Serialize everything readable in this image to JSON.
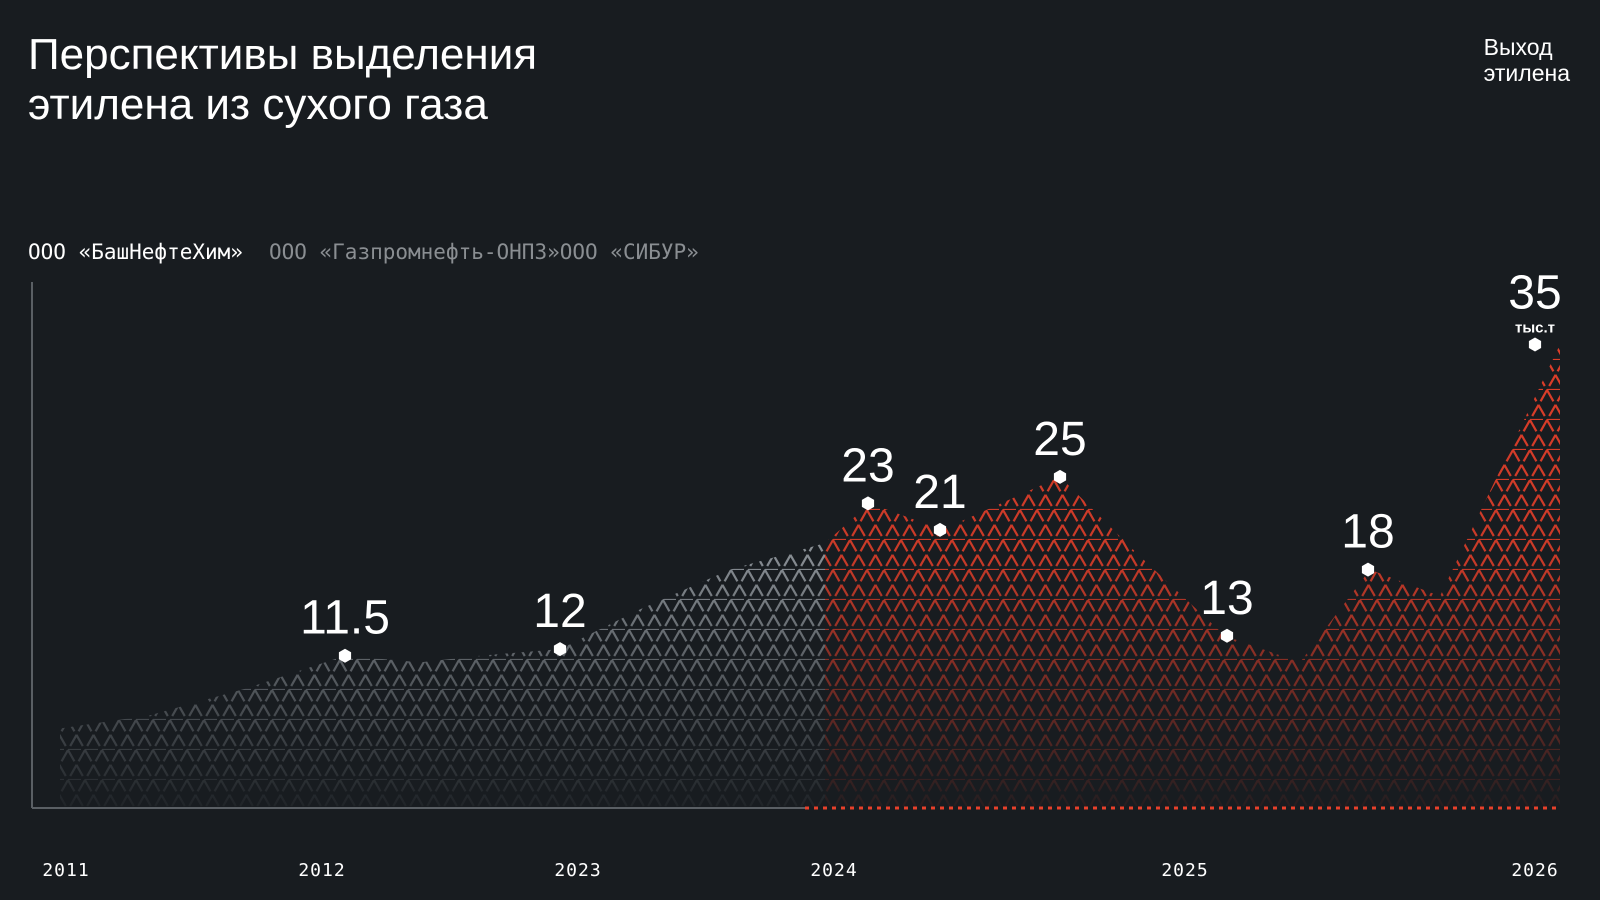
{
  "title": "Перспективы выделения\nэтилена из сухого газа",
  "unit_note": "Выход\nэтилена",
  "legend": [
    {
      "label": "ООО «БашНефтеХим»",
      "active": true
    },
    {
      "label": "ООО «Газпромнефть-ОНПЗ»",
      "active": false
    },
    {
      "label": "ООО «СИБУР»",
      "active": false
    }
  ],
  "colors": {
    "background": "#181c20",
    "history": "#9aa0a6",
    "forecast": "#e8402a",
    "axis": "#5a5f64"
  },
  "chart_data": {
    "type": "area",
    "x_ticks": [
      "2011",
      "2012",
      "2023",
      "2024",
      "2025",
      "2026"
    ],
    "unit": "тыс.т",
    "labeled_points": [
      {
        "x": "2012",
        "value": 11.5,
        "label": "11.5"
      },
      {
        "x": "2023",
        "value": 12,
        "label": "12"
      },
      {
        "x": "2024",
        "value": 23,
        "label": "23"
      },
      {
        "x": "2024",
        "value": 21,
        "label": "21"
      },
      {
        "x": "2024",
        "value": 25,
        "label": "25"
      },
      {
        "x": "2025",
        "value": 13,
        "label": "13"
      },
      {
        "x": "2025",
        "value": 18,
        "label": "18"
      },
      {
        "x": "2026",
        "value": 35,
        "label": "35"
      }
    ],
    "series": [
      {
        "segment": "history",
        "values": [
          6,
          7,
          9,
          11.5,
          11,
          11.5,
          12,
          15,
          18,
          20
        ]
      },
      {
        "segment": "forecast",
        "values": [
          20,
          23,
          21,
          25,
          19,
          13,
          11,
          18,
          16,
          35
        ]
      }
    ],
    "ylim": [
      0,
      37
    ],
    "grid": false,
    "legend_position": "top-left"
  }
}
